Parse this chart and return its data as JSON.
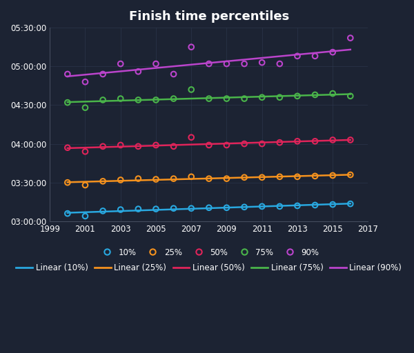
{
  "title": "Finish time percentiles",
  "background_color": "#1c2333",
  "plot_bg_color": "#1c2333",
  "text_color": "#ffffff",
  "grid_color": "#2e3a50",
  "years": [
    2000,
    2001,
    2002,
    2003,
    2004,
    2005,
    2006,
    2007,
    2008,
    2009,
    2010,
    2011,
    2012,
    2013,
    2014,
    2015,
    2016
  ],
  "p10": [
    11160,
    11040,
    11280,
    11340,
    11370,
    11370,
    11400,
    11400,
    11430,
    11430,
    11460,
    11490,
    11490,
    11520,
    11550,
    11580,
    11610
  ],
  "p25": [
    12600,
    12480,
    12660,
    12720,
    12780,
    12750,
    12780,
    12870,
    12780,
    12780,
    12840,
    12840,
    12870,
    12870,
    12900,
    12930,
    12960
  ],
  "p50": [
    14220,
    14040,
    14280,
    14340,
    14280,
    14340,
    14280,
    14700,
    14340,
    14340,
    14400,
    14400,
    14460,
    14520,
    14520,
    14580,
    14580
  ],
  "p75": [
    16320,
    16080,
    16440,
    16500,
    16440,
    16440,
    16500,
    16920,
    16500,
    16500,
    16500,
    16560,
    16560,
    16620,
    16680,
    16740,
    16620
  ],
  "p90": [
    17640,
    17280,
    17640,
    18120,
    17760,
    18120,
    17640,
    18900,
    18120,
    18120,
    18120,
    18180,
    18120,
    18480,
    18480,
    18660,
    19320
  ],
  "colors": {
    "p10": "#29a8e0",
    "p25": "#f5921e",
    "p50": "#e0245a",
    "p75": "#4ab54a",
    "p90": "#bb44cc"
  },
  "ylim_seconds": [
    10800,
    19800
  ],
  "yticks_seconds": [
    10800,
    12600,
    14400,
    16200,
    18000,
    19800
  ],
  "xlim": [
    1999,
    2017
  ],
  "xticks": [
    1999,
    2001,
    2003,
    2005,
    2007,
    2009,
    2011,
    2013,
    2015,
    2017
  ]
}
